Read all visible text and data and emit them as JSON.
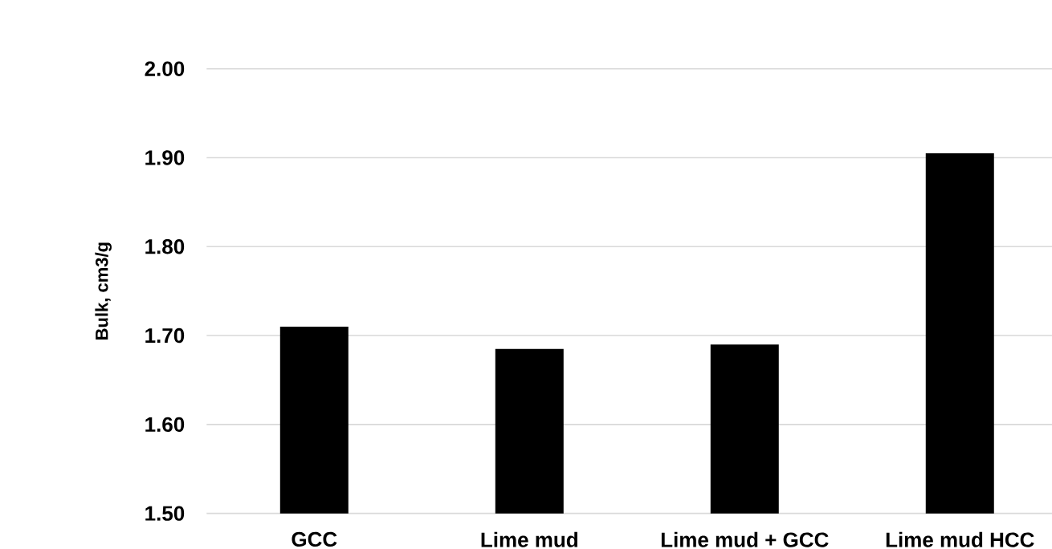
{
  "chart_data": {
    "type": "bar",
    "ylabel": "Bulk, cm3/g",
    "categories": [
      "GCC",
      "Lime mud",
      "Lime mud + GCC",
      "Lime mud HCC"
    ],
    "values": [
      1.71,
      1.685,
      1.69,
      1.905
    ],
    "color": "#000000",
    "ylim": [
      1.5,
      2.0
    ],
    "yticks": [
      {
        "value": 1.5,
        "label": "1.50"
      },
      {
        "value": 1.6,
        "label": "1.60"
      },
      {
        "value": 1.7,
        "label": "1.70"
      },
      {
        "value": 1.8,
        "label": "1.80"
      },
      {
        "value": 1.9,
        "label": "1.90"
      },
      {
        "value": 2.0,
        "label": "2.00"
      }
    ],
    "grid": "y"
  }
}
